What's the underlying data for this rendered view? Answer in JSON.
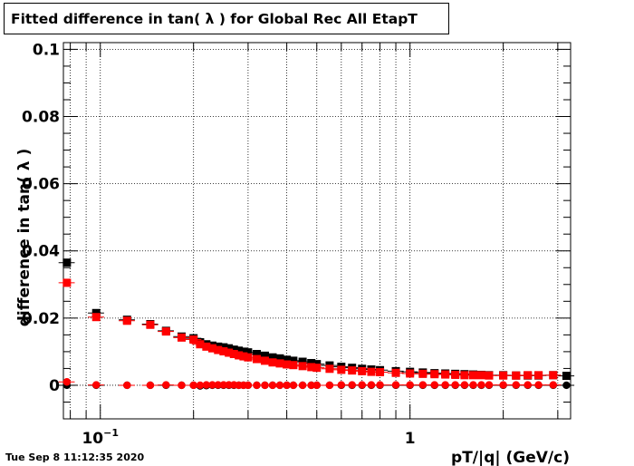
{
  "chart_data": {
    "type": "scatter",
    "title": "Fitted difference in tan( λ ) for Global Rec All EtapT",
    "xlabel": "pT/|q| (GeV/c)",
    "ylabel": "difference in tan( λ )",
    "x_scale": "log",
    "xlim": [
      0.076,
      3.3
    ],
    "ylim": [
      -0.01,
      0.102
    ],
    "grid": true,
    "x_tick_labels": [
      {
        "value": 0.1,
        "base": "10",
        "exp": "−1"
      },
      {
        "value": 1,
        "base": "1",
        "exp": ""
      }
    ],
    "y_ticks": [
      0,
      0.02,
      0.04,
      0.06,
      0.08,
      0.1
    ],
    "y_tick_labels": [
      "0",
      "0.02",
      "0.04",
      "0.06",
      "0.08",
      "0.1"
    ],
    "series": [
      {
        "color": "#000000",
        "marker": "square",
        "x": [
          0.078,
          0.097,
          0.122,
          0.145,
          0.163,
          0.183,
          0.2,
          0.21,
          0.22,
          0.23,
          0.24,
          0.25,
          0.26,
          0.27,
          0.28,
          0.29,
          0.3,
          0.32,
          0.34,
          0.36,
          0.38,
          0.4,
          0.42,
          0.45,
          0.48,
          0.5,
          0.55,
          0.6,
          0.65,
          0.7,
          0.75,
          0.8,
          0.9,
          1.0,
          1.1,
          1.2,
          1.3,
          1.4,
          1.5,
          1.6,
          1.7,
          1.8,
          2.0,
          2.2,
          2.4,
          2.6,
          2.9,
          3.2
        ],
        "y": [
          0.0365,
          0.0215,
          0.0195,
          0.0182,
          0.0162,
          0.0145,
          0.014,
          0.0128,
          0.0122,
          0.0118,
          0.0115,
          0.0113,
          0.011,
          0.0106,
          0.0103,
          0.01,
          0.0098,
          0.0093,
          0.0088,
          0.0083,
          0.008,
          0.0076,
          0.0073,
          0.007,
          0.0066,
          0.0063,
          0.0059,
          0.0055,
          0.0052,
          0.0049,
          0.0047,
          0.0045,
          0.0042,
          0.004,
          0.0038,
          0.0036,
          0.0035,
          0.0034,
          0.0033,
          0.0032,
          0.0031,
          0.003,
          0.003,
          0.0029,
          0.0029,
          0.0029,
          0.003,
          0.0028
        ]
      },
      {
        "color": "#000000",
        "marker": "circle",
        "x": [
          0.078,
          0.097,
          0.122,
          0.145,
          0.163,
          0.183,
          0.2,
          0.21,
          0.22,
          0.23,
          0.24,
          0.25,
          0.26,
          0.27,
          0.28,
          0.29,
          0.3,
          0.32,
          0.34,
          0.36,
          0.38,
          0.4,
          0.42,
          0.45,
          0.48,
          0.5,
          0.55,
          0.6,
          0.65,
          0.7,
          0.75,
          0.8,
          0.9,
          1.0,
          1.1,
          1.2,
          1.3,
          1.4,
          1.5,
          1.6,
          1.7,
          1.8,
          2.0,
          2.2,
          2.4,
          2.6,
          2.9,
          3.2
        ],
        "y": [
          0.0,
          0.0,
          0.0,
          0.0,
          0.0,
          0.0,
          0.0,
          -0.0002,
          -0.0001,
          0.0,
          0.0,
          0.0,
          0.0,
          0.0,
          0.0,
          0.0,
          0.0,
          0.0,
          0.0,
          0.0,
          0.0,
          0.0,
          0.0,
          0.0,
          0.0,
          0.0,
          0.0,
          0.0,
          0.0,
          0.0,
          0.0,
          0.0,
          0.0,
          0.0,
          0.0,
          0.0,
          0.0,
          0.0,
          0.0,
          0.0,
          0.0,
          0.0,
          0.0,
          0.0,
          0.0,
          0.0,
          0.0,
          0.0
        ]
      },
      {
        "color": "#ff0000",
        "marker": "square",
        "x": [
          0.078,
          0.097,
          0.122,
          0.145,
          0.163,
          0.183,
          0.2,
          0.21,
          0.22,
          0.23,
          0.24,
          0.25,
          0.26,
          0.27,
          0.28,
          0.29,
          0.3,
          0.32,
          0.34,
          0.36,
          0.38,
          0.4,
          0.42,
          0.45,
          0.48,
          0.5,
          0.55,
          0.6,
          0.65,
          0.7,
          0.75,
          0.8,
          0.9,
          1.0,
          1.1,
          1.2,
          1.3,
          1.4,
          1.5,
          1.6,
          1.7,
          1.8,
          2.0,
          2.2,
          2.4,
          2.6,
          2.9
        ],
        "y": [
          0.0305,
          0.0203,
          0.0192,
          0.018,
          0.016,
          0.0142,
          0.0136,
          0.0122,
          0.0115,
          0.011,
          0.0105,
          0.0101,
          0.0097,
          0.0093,
          0.0089,
          0.0086,
          0.0083,
          0.0078,
          0.0073,
          0.0068,
          0.0065,
          0.0062,
          0.006,
          0.0057,
          0.0054,
          0.0052,
          0.0049,
          0.0046,
          0.0044,
          0.0042,
          0.004,
          0.0039,
          0.0037,
          0.0035,
          0.0034,
          0.0033,
          0.0032,
          0.0031,
          0.003,
          0.003,
          0.003,
          0.0029,
          0.0029,
          0.0029,
          0.003,
          0.003,
          0.003
        ]
      },
      {
        "color": "#ff0000",
        "marker": "circle",
        "x": [
          0.078,
          0.097,
          0.122,
          0.145,
          0.163,
          0.183,
          0.2,
          0.21,
          0.22,
          0.23,
          0.24,
          0.25,
          0.26,
          0.27,
          0.28,
          0.29,
          0.3,
          0.32,
          0.34,
          0.36,
          0.38,
          0.4,
          0.42,
          0.45,
          0.48,
          0.5,
          0.55,
          0.6,
          0.65,
          0.7,
          0.75,
          0.8,
          0.9,
          1.0,
          1.1,
          1.2,
          1.3,
          1.4,
          1.5,
          1.6,
          1.7,
          1.8,
          2.0,
          2.2,
          2.4,
          2.6,
          2.9
        ],
        "y": [
          0.001,
          0.0001,
          0.0,
          0.0,
          0.0001,
          0.0,
          0.0,
          0.0,
          0.0001,
          0.0001,
          0.0001,
          0.0001,
          0.0001,
          0.0001,
          0.0,
          0.0,
          0.0,
          0.0,
          0.0,
          0.0,
          0.0,
          0.0,
          0.0,
          0.0,
          0.0,
          0.0,
          0.0,
          0.0001,
          0.0001,
          0.0001,
          0.0001,
          0.0001,
          0.0001,
          0.0001,
          0.0001,
          0.0001,
          0.0001,
          0.0001,
          0.0001,
          0.0001,
          0.0001,
          0.0001,
          0.0001,
          0.0001,
          0.0001,
          0.0001,
          0.0001
        ]
      }
    ]
  },
  "timestamp": "Tue Sep  8 11:12:35 2020"
}
